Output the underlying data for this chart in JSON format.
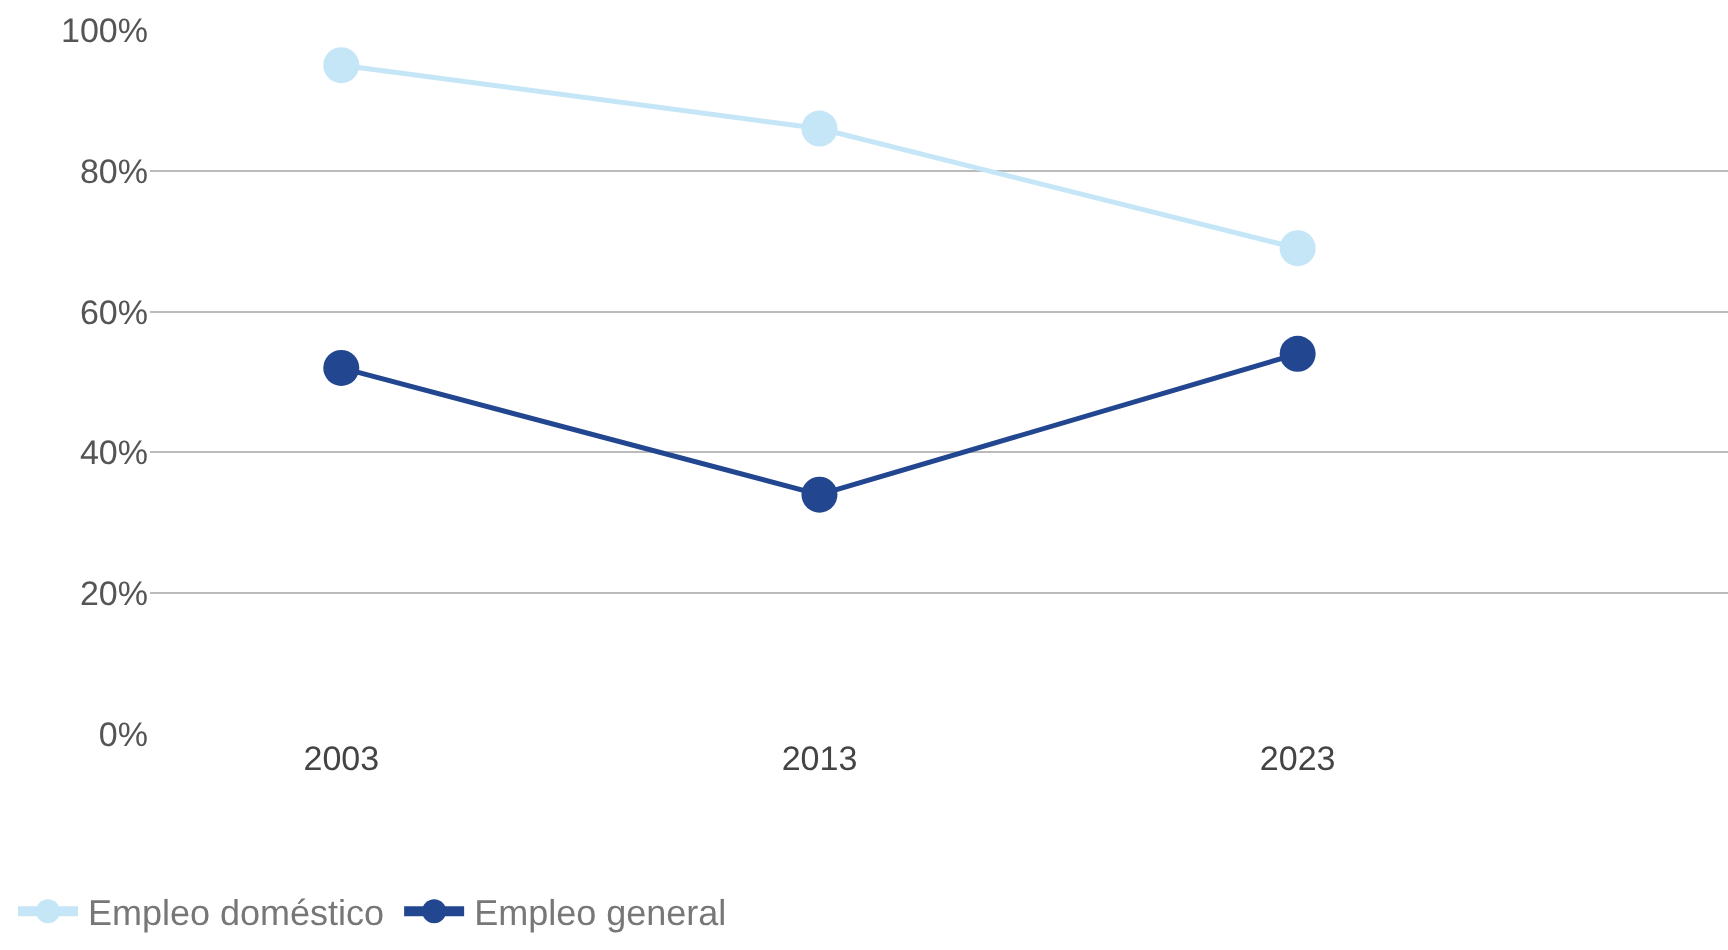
{
  "chart_data": {
    "type": "line",
    "categories": [
      "2003",
      "2013",
      "2023"
    ],
    "series": [
      {
        "name": "Empleo doméstico",
        "color": "#c5e6f7",
        "values": [
          95,
          86,
          69
        ]
      },
      {
        "name": "Empleo general",
        "color": "#22468f",
        "values": [
          52,
          34,
          54
        ]
      }
    ],
    "ylim": [
      0,
      100
    ],
    "yticks": [
      {
        "value": 0,
        "label": "0%"
      },
      {
        "value": 20,
        "label": "20%"
      },
      {
        "value": 40,
        "label": "40%"
      },
      {
        "value": 60,
        "label": "60%"
      },
      {
        "value": 80,
        "label": "80%"
      },
      {
        "value": 100,
        "label": "100%"
      }
    ],
    "grid": "y",
    "legend": "bottom left",
    "marker": "circle",
    "line_style": "solid"
  }
}
